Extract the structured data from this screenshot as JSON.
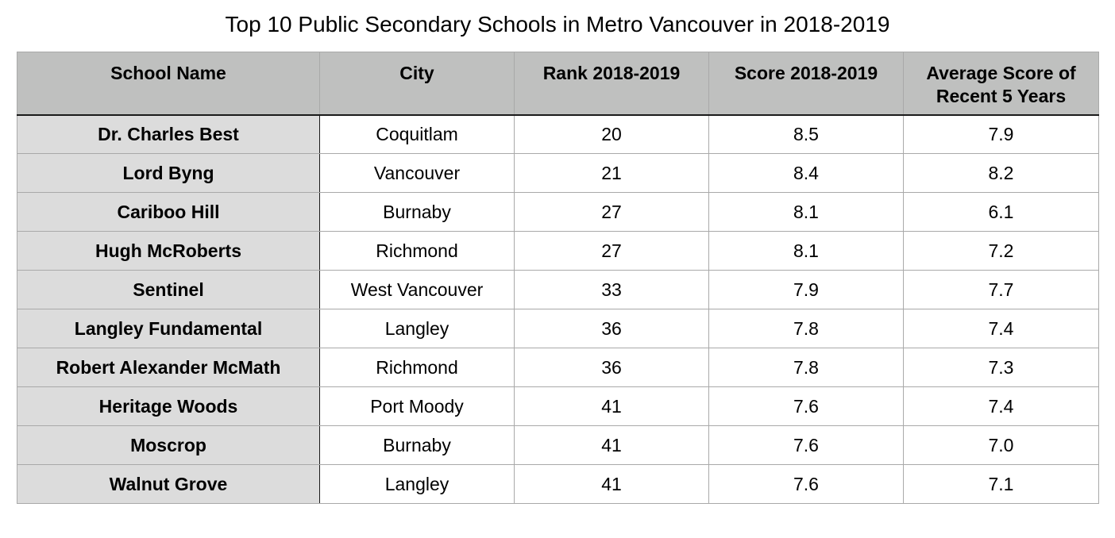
{
  "chart_data": {
    "type": "table",
    "title": "Top 10 Public Secondary Schools in Metro Vancouver in 2018-2019",
    "columns": [
      "School Name",
      "City",
      "Rank 2018-2019",
      "Score 2018-2019",
      "Average Score of Recent 5 Years"
    ],
    "rows": [
      [
        "Dr. Charles Best",
        "Coquitlam",
        "20",
        "8.5",
        "7.9"
      ],
      [
        "Lord Byng",
        "Vancouver",
        "21",
        "8.4",
        "8.2"
      ],
      [
        "Cariboo Hill",
        "Burnaby",
        "27",
        "8.1",
        "6.1"
      ],
      [
        "Hugh McRoberts",
        "Richmond",
        "27",
        "8.1",
        "7.2"
      ],
      [
        "Sentinel",
        "West Vancouver",
        "33",
        "7.9",
        "7.7"
      ],
      [
        "Langley Fundamental",
        "Langley",
        "36",
        "7.8",
        "7.4"
      ],
      [
        "Robert Alexander McMath",
        "Richmond",
        "36",
        "7.8",
        "7.3"
      ],
      [
        "Heritage Woods",
        "Port Moody",
        "41",
        "7.6",
        "7.4"
      ],
      [
        "Moscrop",
        "Burnaby",
        "41",
        "7.6",
        "7.0"
      ],
      [
        "Walnut Grove",
        "Langley",
        "41",
        "7.6",
        "7.1"
      ]
    ],
    "colors": {
      "header_bg": "#bfc0bf",
      "name_column_bg": "#dcdcdc",
      "body_bg": "#ffffff",
      "grid": "#a9a9a9"
    }
  }
}
